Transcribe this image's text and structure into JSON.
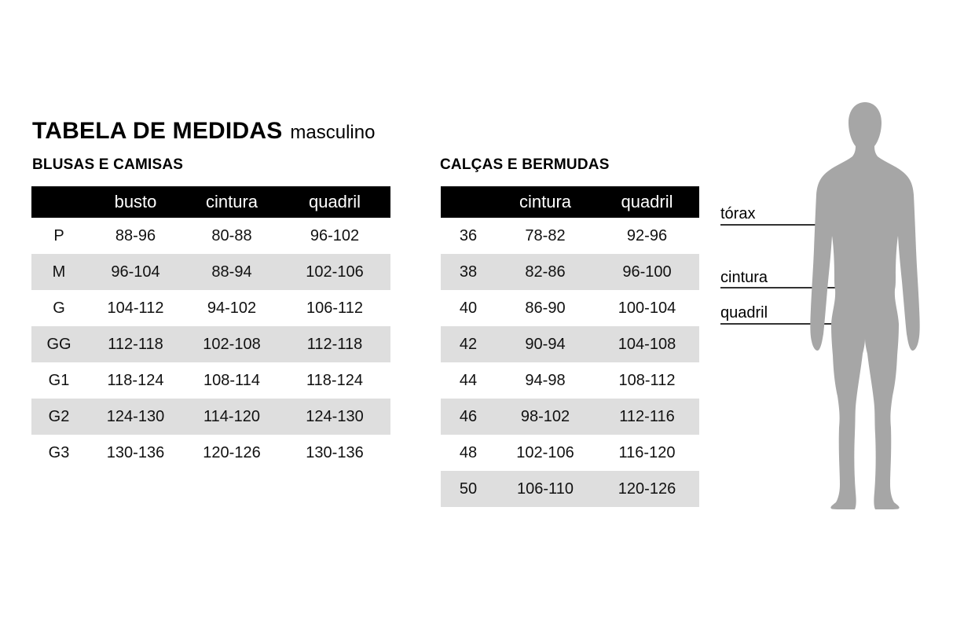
{
  "title": "TABELA DE MEDIDAS",
  "subtitle": "masculino",
  "tables": [
    {
      "heading": "BLUSAS E CAMISAS",
      "columns": [
        "",
        "busto",
        "cintura",
        "quadril"
      ],
      "rows": [
        [
          "P",
          "88-96",
          "80-88",
          "96-102"
        ],
        [
          "M",
          "96-104",
          "88-94",
          "102-106"
        ],
        [
          "G",
          "104-112",
          "94-102",
          "106-112"
        ],
        [
          "GG",
          "112-118",
          "102-108",
          "112-118"
        ],
        [
          "G1",
          "118-124",
          "108-114",
          "118-124"
        ],
        [
          "G2",
          "124-130",
          "114-120",
          "124-130"
        ],
        [
          "G3",
          "130-136",
          "120-126",
          "130-136"
        ]
      ]
    },
    {
      "heading": "CALÇAS E BERMUDAS",
      "columns": [
        "",
        "cintura",
        "quadril"
      ],
      "rows": [
        [
          "36",
          "78-82",
          "92-96"
        ],
        [
          "38",
          "82-86",
          "96-100"
        ],
        [
          "40",
          "86-90",
          "100-104"
        ],
        [
          "42",
          "90-94",
          "104-108"
        ],
        [
          "44",
          "94-98",
          "108-112"
        ],
        [
          "46",
          "98-102",
          "112-116"
        ],
        [
          "48",
          "102-106",
          "116-120"
        ],
        [
          "50",
          "106-110",
          "120-126"
        ]
      ]
    }
  ],
  "figure": {
    "labels": {
      "torax": "tórax",
      "cintura": "cintura",
      "quadril": "quadril"
    },
    "silhouette_color": "#a6a6a6",
    "line_color": "#333333"
  },
  "colors": {
    "header_bg": "#000000",
    "header_text": "#ffffff",
    "row_alt_bg": "#dedede",
    "text": "#000000",
    "background": "#ffffff"
  }
}
